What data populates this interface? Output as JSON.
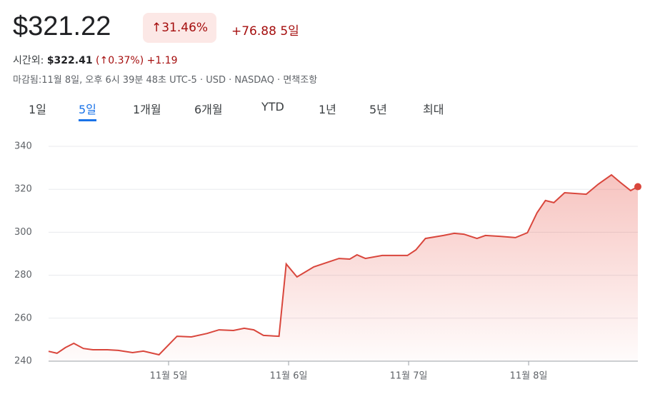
{
  "header": {
    "price": "$321.22",
    "change_pct": "↑31.46%",
    "change": "+76.88",
    "period": "5일",
    "after_hours_label": "시간외:",
    "after_hours_price": "$322.41",
    "after_hours_pct": "(↑0.37%)",
    "after_hours_change": "+1.19",
    "meta": "마감됨:11월 8일, 오후 6시 39분 48초 UTC-5 · USD · NASDAQ · 면책조항"
  },
  "tabs": {
    "items": [
      "1일",
      "5일",
      "1개월",
      "6개월",
      "YTD",
      "1년",
      "5년",
      "최대"
    ],
    "selected": 1
  },
  "chart_data": {
    "type": "line",
    "color": "#d9463c",
    "grid": true,
    "x": [
      0,
      0.07,
      0.14,
      0.21,
      0.29,
      0.37,
      0.49,
      0.58,
      0.7,
      0.79,
      0.92,
      1.07,
      1.19,
      1.32,
      1.42,
      1.54,
      1.63,
      1.71,
      1.79,
      1.92,
      1.98,
      2.07,
      2.21,
      2.42,
      2.51,
      2.57,
      2.64,
      2.78,
      2.99,
      3.06,
      3.14,
      3.29,
      3.38,
      3.46,
      3.57,
      3.64,
      3.76,
      3.89,
      3.99,
      4.07,
      4.14,
      4.21,
      4.3,
      4.48,
      4.58,
      4.69,
      4.76,
      4.85,
      4.91
    ],
    "values": [
      244.6,
      243.7,
      246.3,
      248.3,
      245.9,
      245.3,
      245.3,
      245,
      244,
      244.7,
      243,
      251.6,
      251.3,
      252.9,
      254.6,
      254.3,
      255.3,
      254.6,
      252,
      251.6,
      285.2,
      279.2,
      283.9,
      287.8,
      287.5,
      289.5,
      287.8,
      289.2,
      289.2,
      291.8,
      297.1,
      298.5,
      299.5,
      299.1,
      297.1,
      298.5,
      298.1,
      297.5,
      299.8,
      309.1,
      314.8,
      313.8,
      318.4,
      317.7,
      322.4,
      326.7,
      323.4,
      319.4,
      321.22
    ],
    "xlim": [
      0,
      4.91
    ],
    "ylim": [
      240,
      340
    ],
    "yticks": [
      240,
      260,
      280,
      300,
      320,
      340
    ],
    "xticks": [
      {
        "value": 1,
        "label": "11월 5일"
      },
      {
        "value": 2,
        "label": "11월 6일"
      },
      {
        "value": 3,
        "label": "11월 7일"
      },
      {
        "value": 4,
        "label": "11월 8일"
      }
    ]
  }
}
